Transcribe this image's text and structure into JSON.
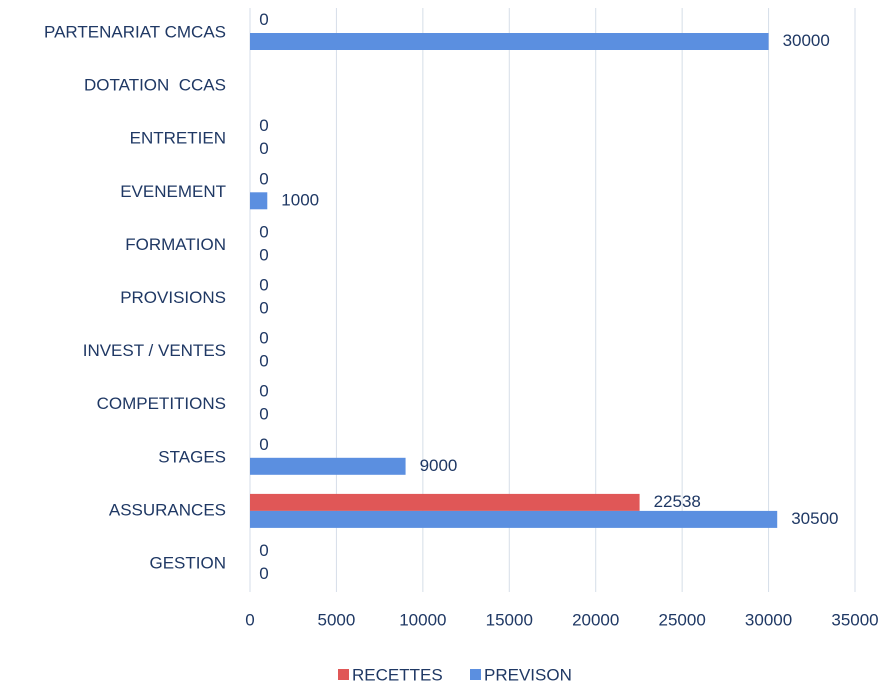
{
  "chart_data": {
    "type": "bar",
    "orientation": "horizontal",
    "categories": [
      "PARTENARIAT CMCAS",
      "DOTATION  CCAS",
      "ENTRETIEN",
      "EVENEMENT",
      "FORMATION",
      "PROVISIONS",
      "INVEST / VENTES",
      "COMPETITIONS",
      "STAGES",
      "ASSURANCES",
      "GESTION"
    ],
    "series": [
      {
        "name": "RECETTES",
        "color": "#e05757",
        "values": [
          0,
          null,
          0,
          0,
          0,
          0,
          0,
          0,
          0,
          22538,
          0
        ]
      },
      {
        "name": "PREVISON",
        "color": "#5b8fe0",
        "values": [
          30000,
          null,
          0,
          1000,
          0,
          0,
          0,
          0,
          9000,
          30500,
          0
        ]
      }
    ],
    "xlim": [
      0,
      35000
    ],
    "xticks": [
      0,
      5000,
      10000,
      15000,
      20000,
      25000,
      30000,
      35000
    ],
    "grid": true,
    "legend": "bottom"
  }
}
